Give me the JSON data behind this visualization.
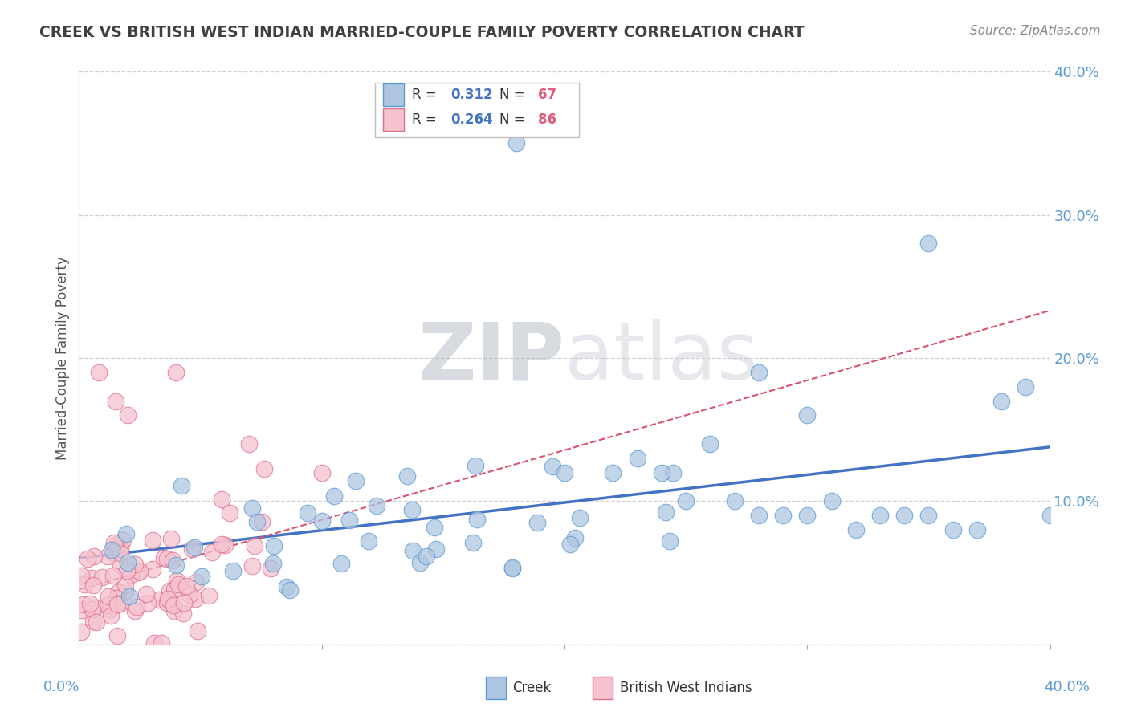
{
  "title": "CREEK VS BRITISH WEST INDIAN MARRIED-COUPLE FAMILY POVERTY CORRELATION CHART",
  "source": "Source: ZipAtlas.com",
  "ylabel": "Married-Couple Family Poverty",
  "xlim": [
    0.0,
    0.4
  ],
  "ylim": [
    0.0,
    0.4
  ],
  "creek_R": 0.312,
  "creek_N": 67,
  "bwi_R": 0.264,
  "bwi_N": 86,
  "creek_color": "#aec6e0",
  "creek_edge_color": "#5b9bd5",
  "creek_line_color": "#4472c4",
  "bwi_color": "#f5c2ce",
  "bwi_edge_color": "#e07090",
  "bwi_line_color": "#d9536f",
  "watermark_color": "#d8dde8",
  "background_color": "#ffffff",
  "legend_edge_color": "#c0c0c0",
  "grid_color": "#d0d0d0",
  "title_color": "#404040",
  "axis_label_color": "#555555",
  "tick_color": "#5b9bd5",
  "source_color": "#888888",
  "ytick_vals": [
    0.0,
    0.1,
    0.2,
    0.3,
    0.4
  ],
  "ytick_labels": [
    "",
    "10.0%",
    "20.0%",
    "30.0%",
    "40.0%"
  ]
}
